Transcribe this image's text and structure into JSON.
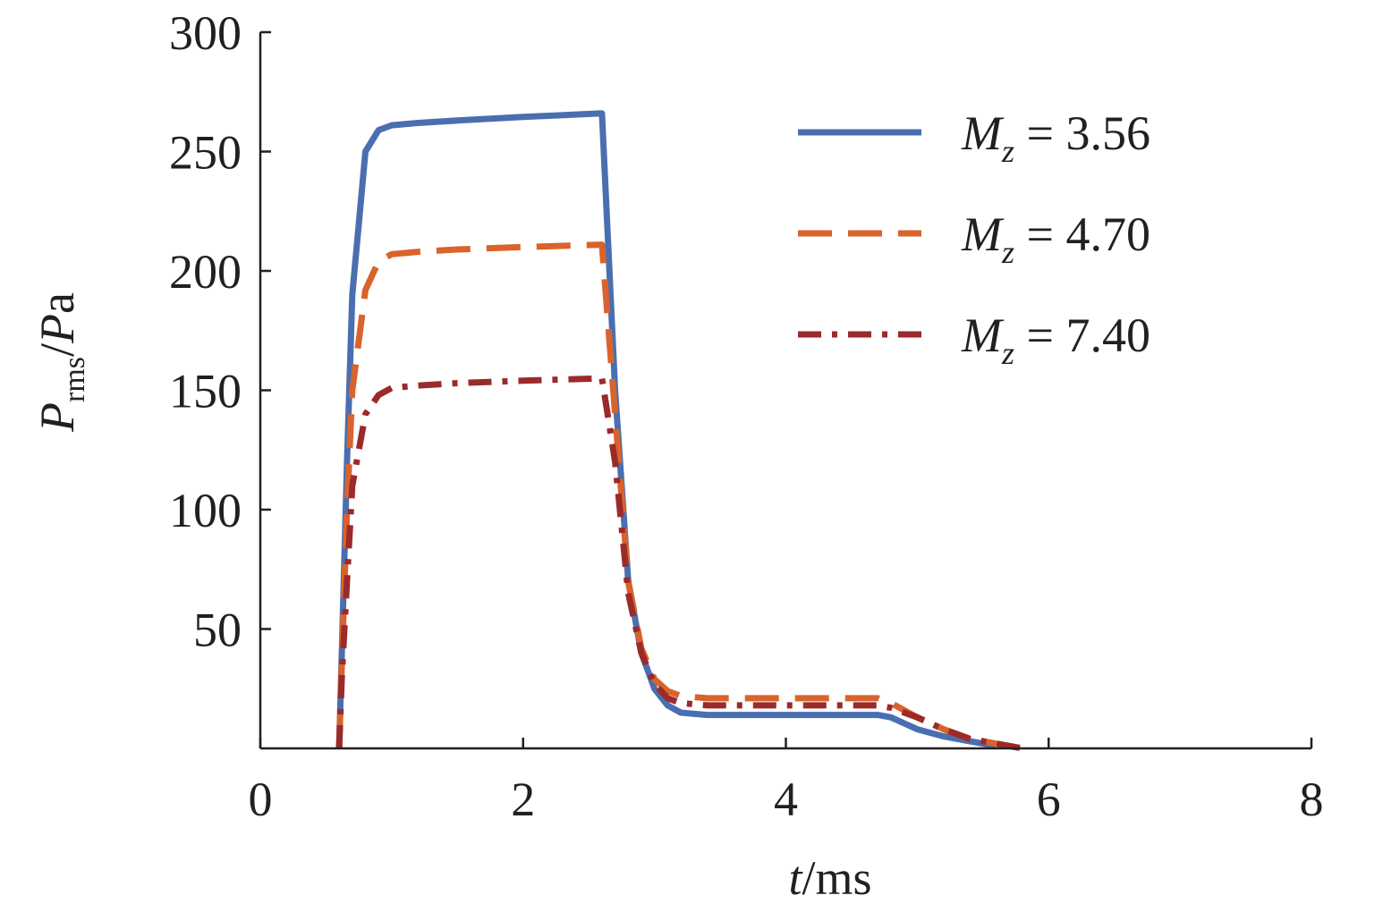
{
  "chart_data": {
    "type": "line",
    "xlabel_italic": "t",
    "xlabel_unit": "/ms",
    "ylabel_italic_main": "P",
    "ylabel_sub": "rms",
    "ylabel_slash": "/",
    "ylabel_italic_unit": "P",
    "ylabel_rest": "a",
    "xlim": [
      0,
      8
    ],
    "ylim": [
      0,
      300
    ],
    "xticks": [
      0,
      2,
      4,
      6,
      8
    ],
    "xtick_labels": [
      "0",
      "2",
      "4",
      "6",
      "8"
    ],
    "yticks": [
      50,
      100,
      150,
      200,
      250,
      300
    ],
    "ytick_labels": [
      "50",
      "100",
      "150",
      "200",
      "250",
      "300"
    ],
    "grid": false,
    "legend_position": "top-right",
    "series": [
      {
        "symbol": "M",
        "subscript": "z",
        "value_text": " = 3.56",
        "color": "#4a6fb0",
        "style": "solid",
        "x": [
          0.6,
          0.62,
          0.66,
          0.7,
          0.8,
          0.9,
          1.0,
          1.2,
          1.5,
          2.0,
          2.6,
          2.7,
          2.8,
          2.9,
          3.0,
          3.1,
          3.2,
          3.4,
          3.8,
          4.2,
          4.7,
          4.8,
          5.0,
          5.2,
          5.4,
          5.6
        ],
        "y": [
          0,
          40,
          120,
          190,
          250,
          259,
          261,
          262,
          263,
          264.5,
          266,
          150,
          70,
          40,
          25,
          18,
          15,
          14,
          14,
          14,
          14,
          13,
          8,
          5,
          3,
          1
        ]
      },
      {
        "symbol": "M",
        "subscript": "z",
        "value_text": " = 4.70",
        "color": "#d9632c",
        "style": "dashed",
        "x": [
          0.6,
          0.62,
          0.66,
          0.7,
          0.8,
          0.9,
          1.0,
          1.2,
          1.5,
          2.0,
          2.6,
          2.7,
          2.8,
          2.9,
          3.0,
          3.1,
          3.2,
          3.4,
          3.8,
          4.2,
          4.7,
          4.8,
          5.0,
          5.2,
          5.4,
          5.6,
          5.8
        ],
        "y": [
          0,
          35,
          100,
          150,
          192,
          204,
          207,
          208,
          209,
          210,
          211,
          140,
          70,
          42,
          29,
          24,
          22,
          21,
          21,
          21,
          21,
          19,
          13,
          8,
          4,
          2,
          0
        ]
      },
      {
        "symbol": "M",
        "subscript": "z",
        "value_text": " = 7.40",
        "color": "#9b2a2a",
        "style": "dashdot",
        "x": [
          0.6,
          0.62,
          0.66,
          0.7,
          0.8,
          0.9,
          1.0,
          1.2,
          1.5,
          2.0,
          2.6,
          2.7,
          2.8,
          2.9,
          3.0,
          3.1,
          3.2,
          3.4,
          3.8,
          4.2,
          4.7,
          4.8,
          5.0,
          5.2,
          5.4,
          5.6,
          5.8
        ],
        "y": [
          0,
          30,
          70,
          110,
          140,
          148,
          151,
          152,
          153,
          154,
          155,
          120,
          65,
          40,
          27,
          21,
          19,
          18,
          18,
          18,
          18,
          17,
          13,
          8,
          4,
          2,
          0
        ]
      }
    ]
  }
}
